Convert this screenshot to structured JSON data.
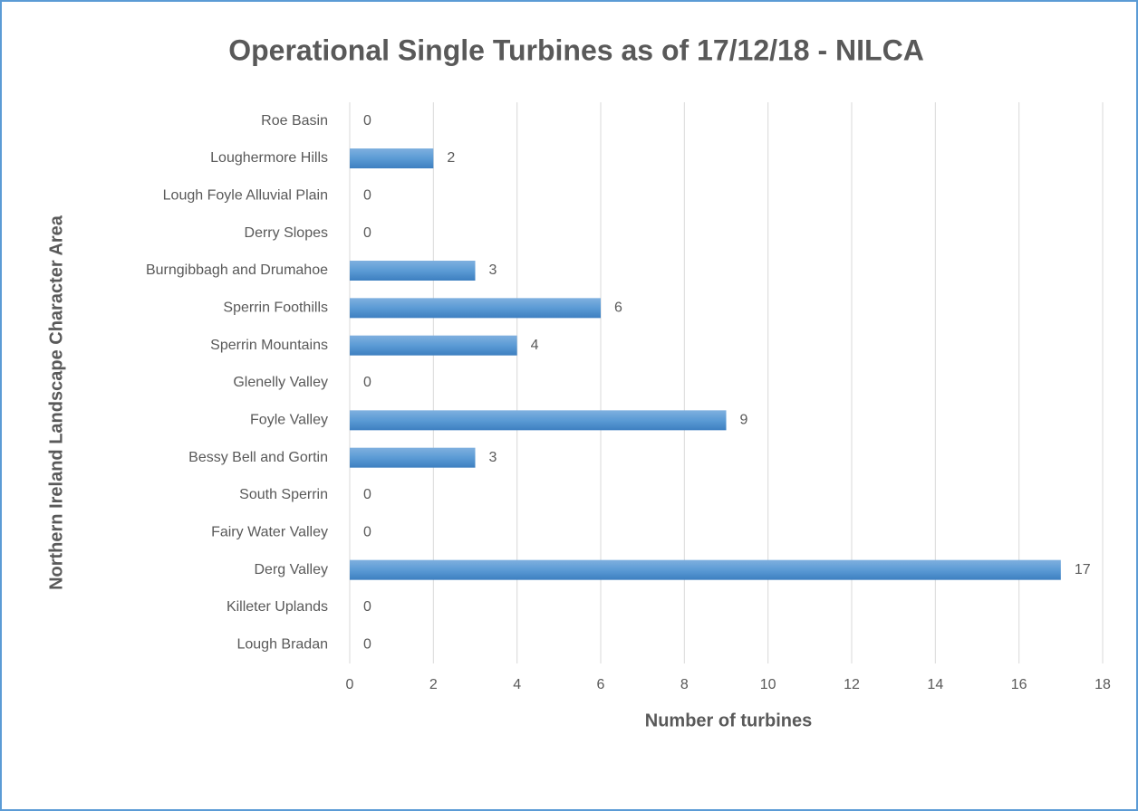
{
  "chart_data": {
    "type": "bar",
    "orientation": "horizontal",
    "title": "Operational Single Turbines as of 17/12/18 - NILCA",
    "x_label": "Number of turbines",
    "y_label": "Northern Ireland Landscape Character Area",
    "categories": [
      "Roe Basin",
      "Loughermore Hills",
      "Lough Foyle Alluvial Plain",
      "Derry Slopes",
      "Burngibbagh and Drumahoe",
      "Sperrin Foothills",
      "Sperrin Mountains",
      "Glenelly Valley",
      "Foyle Valley",
      "Bessy Bell and Gortin",
      "South Sperrin",
      "Fairy Water Valley",
      "Derg Valley",
      "Killeter Uplands",
      "Lough Bradan"
    ],
    "values": [
      0,
      2,
      0,
      0,
      3,
      6,
      4,
      0,
      9,
      3,
      0,
      0,
      17,
      0,
      0
    ],
    "color": "#5b9bd5",
    "xlim": [
      0,
      18
    ],
    "xticks": [
      0,
      2,
      4,
      6,
      8,
      10,
      12,
      14,
      16,
      18
    ],
    "grid": true
  }
}
